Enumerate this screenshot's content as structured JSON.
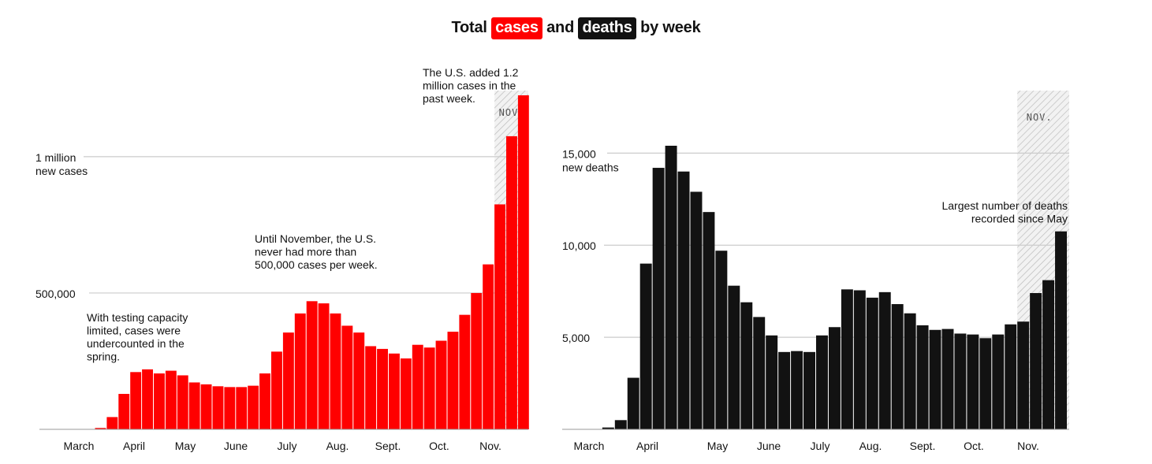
{
  "title": {
    "prefix": "Total",
    "cases_word": "cases",
    "middle": "and",
    "deaths_word": "deaths",
    "suffix": "by week"
  },
  "colors": {
    "cases": "#ff0000",
    "deaths": "#121212",
    "gridline": "#cccccc",
    "shade": "#bbbbbb"
  },
  "chart_data": [
    {
      "type": "bar",
      "name": "cases",
      "color": "#ff0000",
      "ylim": [
        0,
        1230000
      ],
      "gridlines": [
        500000,
        1000000
      ],
      "y_tick_labels": [
        {
          "value": 1000000,
          "lines": [
            "1 million",
            "new cases"
          ]
        },
        {
          "value": 500000,
          "lines": [
            "500,000"
          ]
        }
      ],
      "x_tick_labels": [
        "March",
        "April",
        "May",
        "June",
        "July",
        "Aug.",
        "Sept.",
        "Oct.",
        "Nov."
      ],
      "x_tick_label_weeks": [
        3,
        7.5,
        12,
        16.5,
        21,
        25.5,
        30,
        34.5,
        39
      ],
      "values": [
        0,
        0,
        0,
        0,
        0,
        5000,
        45000,
        130000,
        210000,
        220000,
        205000,
        215000,
        198000,
        172000,
        165000,
        158000,
        155000,
        155000,
        160000,
        205000,
        285000,
        355000,
        425000,
        470000,
        462000,
        425000,
        380000,
        355000,
        305000,
        295000,
        278000,
        260000,
        310000,
        300000,
        325000,
        358000,
        420000,
        500000,
        605000,
        825000,
        1075000,
        1225000
      ],
      "highlight_start_week": 39,
      "highlight_label": "NOV.",
      "annotations": [
        {
          "lines": [
            "With testing capacity",
            "limited, cases were",
            "undercounted in the",
            "spring."
          ]
        },
        {
          "lines": [
            "Until November, the U.S.",
            "never had more than",
            "500,000 cases per week."
          ]
        },
        {
          "lines": [
            "The U.S. added 1.2",
            "million cases in the",
            "past week."
          ]
        }
      ]
    },
    {
      "type": "bar",
      "name": "deaths",
      "color": "#121212",
      "ylim": [
        0,
        18400
      ],
      "gridlines": [
        5000,
        10000,
        15000
      ],
      "y_tick_labels": [
        {
          "value": 15000,
          "lines": [
            "15,000",
            "new deaths"
          ]
        },
        {
          "value": 10000,
          "lines": [
            "10,000"
          ]
        },
        {
          "value": 5000,
          "lines": [
            "5,000"
          ]
        }
      ],
      "x_tick_labels": [
        "March",
        "April",
        "May",
        "June",
        "July",
        "Aug.",
        "Sept.",
        "Oct.",
        "Nov."
      ],
      "x_tick_label_weeks": [
        1,
        4.5,
        10,
        14,
        18,
        22,
        26,
        30,
        34
      ],
      "values": [
        0,
        0,
        0,
        100,
        500,
        2800,
        9000,
        14200,
        15400,
        14000,
        12900,
        11800,
        9700,
        7800,
        6900,
        6100,
        5100,
        4200,
        4250,
        4200,
        5100,
        5550,
        7600,
        7550,
        7150,
        7450,
        6800,
        6300,
        5650,
        5400,
        5450,
        5200,
        5150,
        4950,
        5150,
        5700,
        5850,
        7400,
        8100,
        10750
      ],
      "highlight_start_week": 36,
      "highlight_label": "NOV.",
      "annotations": [
        {
          "lines": [
            "Largest number of deaths",
            "recorded since May"
          ]
        }
      ]
    }
  ]
}
